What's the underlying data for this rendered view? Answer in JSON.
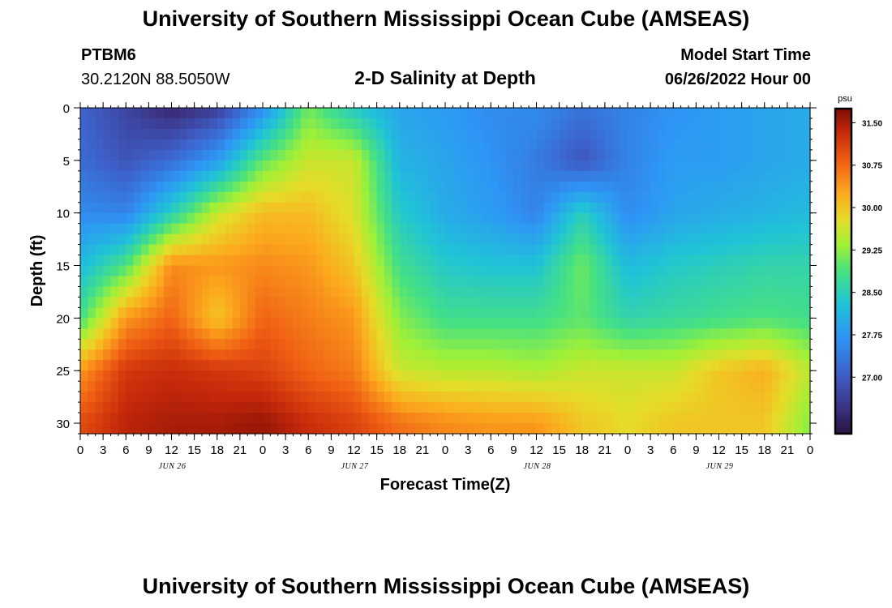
{
  "header": {
    "title": "University of Southern Mississippi Ocean Cube (AMSEAS)",
    "station_id": "PTBM6",
    "station_coords": "30.2120N  88.5050W",
    "plot_title": "2-D Salinity at Depth",
    "model_start_label": "Model Start Time",
    "model_start_value": "06/26/2022 Hour 00"
  },
  "footer": {
    "title": "University of Southern Mississippi Ocean Cube (AMSEAS)"
  },
  "chart_data": {
    "type": "heatmap",
    "title": "2-D Salinity at Depth",
    "xlabel": "Forecast Time(Z)",
    "ylabel": "Depth (ft)",
    "x_range_hours": [
      0,
      96
    ],
    "y_range_ft": [
      0,
      31
    ],
    "x_tick_hours": [
      0,
      3,
      6,
      9,
      12,
      15,
      18,
      21,
      24,
      27,
      30,
      33,
      36,
      39,
      42,
      45,
      48,
      51,
      54,
      57,
      60,
      63,
      66,
      69,
      72,
      75,
      78,
      81,
      84,
      87,
      90,
      93,
      96
    ],
    "x_tick_labels": [
      "0",
      "3",
      "6",
      "9",
      "12",
      "15",
      "18",
      "21",
      "0",
      "3",
      "6",
      "9",
      "12",
      "15",
      "18",
      "21",
      "0",
      "3",
      "6",
      "9",
      "12",
      "15",
      "18",
      "21",
      "0",
      "3",
      "6",
      "9",
      "12",
      "15",
      "18",
      "21",
      "0"
    ],
    "day_labels": [
      {
        "hour": 12,
        "label": "JUN 26"
      },
      {
        "hour": 36,
        "label": "JUN 27"
      },
      {
        "hour": 60,
        "label": "JUN 28"
      },
      {
        "hour": 84,
        "label": "JUN 29"
      }
    ],
    "y_ticks": [
      0,
      5,
      10,
      15,
      20,
      25,
      30
    ],
    "y_tick_labels": [
      "0",
      "5",
      "10",
      "15",
      "20",
      "25",
      "30"
    ],
    "colorbar": {
      "unit": "psu",
      "min": 26.0,
      "max": 31.75,
      "ticks": [
        27.0,
        27.75,
        28.5,
        29.25,
        30.0,
        30.75,
        31.5
      ],
      "tick_labels": [
        "27.00",
        "27.75",
        "28.50",
        "29.25",
        "30.00",
        "30.75",
        "31.50"
      ]
    },
    "grid": {
      "hours": [
        0,
        6,
        12,
        18,
        24,
        30,
        36,
        42,
        48,
        54,
        60,
        66,
        72,
        78,
        84,
        90,
        96
      ],
      "depths_ft": [
        0,
        5,
        10,
        15,
        20,
        25,
        30
      ],
      "salinity_psu": [
        [
          27.1,
          26.7,
          26.3,
          26.6,
          27.6,
          29.1,
          28.4,
          27.9,
          27.8,
          27.6,
          27.6,
          27.3,
          27.5,
          27.7,
          27.8,
          27.9,
          28.0
        ],
        [
          27.2,
          26.9,
          27.2,
          27.8,
          29.0,
          29.6,
          29.6,
          28.1,
          27.9,
          27.7,
          27.4,
          26.9,
          27.5,
          27.8,
          27.8,
          27.9,
          28.0
        ],
        [
          27.6,
          27.5,
          28.5,
          29.6,
          30.1,
          30.1,
          29.7,
          28.4,
          28.0,
          27.8,
          27.5,
          28.5,
          27.6,
          27.9,
          28.0,
          28.1,
          28.2
        ],
        [
          28.2,
          28.9,
          30.5,
          30.4,
          30.5,
          30.4,
          30.0,
          28.8,
          28.4,
          28.3,
          28.3,
          29.1,
          28.2,
          28.4,
          28.5,
          28.6,
          28.6
        ],
        [
          28.8,
          30.4,
          30.8,
          30.0,
          30.8,
          30.6,
          30.4,
          29.2,
          28.8,
          28.8,
          28.8,
          29.0,
          28.6,
          28.7,
          28.8,
          28.9,
          28.8
        ],
        [
          30.4,
          31.2,
          31.3,
          31.2,
          31.1,
          30.8,
          30.6,
          29.6,
          29.5,
          29.5,
          29.4,
          29.6,
          29.6,
          29.6,
          30.0,
          30.2,
          29.5
        ],
        [
          31.0,
          31.4,
          31.5,
          31.5,
          31.6,
          31.3,
          31.1,
          30.7,
          30.5,
          30.4,
          30.4,
          30.0,
          29.8,
          30.0,
          30.0,
          30.0,
          29.2
        ]
      ]
    }
  }
}
